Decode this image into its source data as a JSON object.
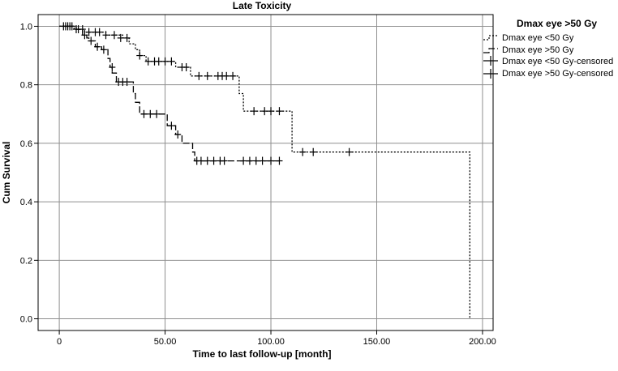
{
  "chart_data": {
    "type": "line",
    "title": "Late Toxicity",
    "xlabel": "Time to last follow-up [month]",
    "ylabel": "Cum Survival",
    "xlim": [
      -10,
      205
    ],
    "ylim": [
      -0.04,
      1.04
    ],
    "x_ticks": [
      0,
      50,
      100,
      150,
      200
    ],
    "x_tick_labels": [
      "0",
      "50.00",
      "100.00",
      "150.00",
      "200.00"
    ],
    "y_ticks": [
      0.0,
      0.2,
      0.4,
      0.6,
      0.8,
      1.0
    ],
    "y_tick_labels": [
      "0.0",
      "0.2",
      "0.4",
      "0.6",
      "0.8",
      "1.0"
    ],
    "grid": true,
    "legend": {
      "title": "Dmax eye >50 Gy",
      "placement": "outside-top-right",
      "entries": [
        "Dmax eye <50 Gy",
        "Dmax eye >50 Gy",
        "Dmax eye <50 Gy-censored",
        "Dmax eye >50 Gy-censored"
      ]
    },
    "series": [
      {
        "name": "Dmax eye <50 Gy",
        "style": "dotted",
        "steps": [
          [
            0,
            1.0
          ],
          [
            7,
            0.99
          ],
          [
            12,
            0.98
          ],
          [
            22,
            0.97
          ],
          [
            30,
            0.96
          ],
          [
            33,
            0.94
          ],
          [
            36,
            0.92
          ],
          [
            38,
            0.9
          ],
          [
            41,
            0.88
          ],
          [
            55,
            0.86
          ],
          [
            62,
            0.83
          ],
          [
            85,
            0.77
          ],
          [
            87,
            0.71
          ],
          [
            110,
            0.57
          ],
          [
            194,
            0.57
          ],
          [
            194,
            0.0
          ]
        ],
        "censored": [
          [
            3,
            1.0
          ],
          [
            5,
            1.0
          ],
          [
            8,
            0.99
          ],
          [
            11,
            0.99
          ],
          [
            14,
            0.98
          ],
          [
            17,
            0.98
          ],
          [
            19,
            0.98
          ],
          [
            22,
            0.97
          ],
          [
            26,
            0.97
          ],
          [
            29,
            0.96
          ],
          [
            32,
            0.96
          ],
          [
            38,
            0.9
          ],
          [
            42,
            0.88
          ],
          [
            45,
            0.88
          ],
          [
            47,
            0.88
          ],
          [
            50,
            0.88
          ],
          [
            53,
            0.88
          ],
          [
            58,
            0.86
          ],
          [
            60,
            0.86
          ],
          [
            66,
            0.83
          ],
          [
            70,
            0.83
          ],
          [
            75,
            0.83
          ],
          [
            77,
            0.83
          ],
          [
            79,
            0.83
          ],
          [
            82,
            0.83
          ],
          [
            92,
            0.71
          ],
          [
            97,
            0.71
          ],
          [
            100,
            0.71
          ],
          [
            104,
            0.71
          ],
          [
            115,
            0.57
          ],
          [
            120,
            0.57
          ],
          [
            137,
            0.57
          ]
        ]
      },
      {
        "name": "Dmax eye >50 Gy",
        "style": "dashed",
        "steps": [
          [
            0,
            1.0
          ],
          [
            8,
            0.99
          ],
          [
            11,
            0.97
          ],
          [
            13,
            0.96
          ],
          [
            14,
            0.95
          ],
          [
            17,
            0.93
          ],
          [
            20,
            0.92
          ],
          [
            23,
            0.89
          ],
          [
            24,
            0.86
          ],
          [
            25,
            0.84
          ],
          [
            27,
            0.81
          ],
          [
            35,
            0.77
          ],
          [
            36,
            0.74
          ],
          [
            38,
            0.7
          ],
          [
            51,
            0.66
          ],
          [
            55,
            0.63
          ],
          [
            58,
            0.6
          ],
          [
            63,
            0.57
          ],
          [
            64,
            0.54
          ],
          [
            105,
            0.54
          ]
        ],
        "censored": [
          [
            2,
            1.0
          ],
          [
            4,
            1.0
          ],
          [
            6,
            1.0
          ],
          [
            9,
            0.99
          ],
          [
            12,
            0.97
          ],
          [
            15,
            0.95
          ],
          [
            18,
            0.93
          ],
          [
            21,
            0.92
          ],
          [
            25,
            0.86
          ],
          [
            28,
            0.81
          ],
          [
            30,
            0.81
          ],
          [
            32,
            0.81
          ],
          [
            40,
            0.7
          ],
          [
            43,
            0.7
          ],
          [
            46,
            0.7
          ],
          [
            53,
            0.66
          ],
          [
            56,
            0.63
          ],
          [
            65,
            0.54
          ],
          [
            67,
            0.54
          ],
          [
            70,
            0.54
          ],
          [
            73,
            0.54
          ],
          [
            76,
            0.54
          ],
          [
            78,
            0.54
          ],
          [
            87,
            0.54
          ],
          [
            90,
            0.54
          ],
          [
            93,
            0.54
          ],
          [
            96,
            0.54
          ],
          [
            100,
            0.54
          ],
          [
            104,
            0.54
          ]
        ]
      }
    ]
  }
}
